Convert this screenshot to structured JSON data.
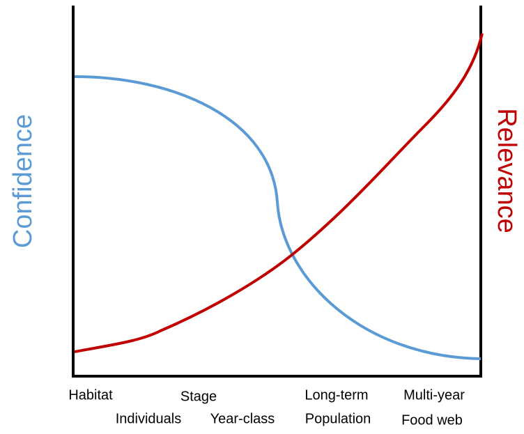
{
  "left_axis_label": "Confidence",
  "right_axis_label": "Relevance",
  "x_labels": {
    "row1": [
      "Habitat",
      "Stage",
      "Long-term",
      "Multi-year"
    ],
    "row2": [
      "Individuals",
      "Year-class",
      "Population",
      "Food web"
    ]
  }
}
